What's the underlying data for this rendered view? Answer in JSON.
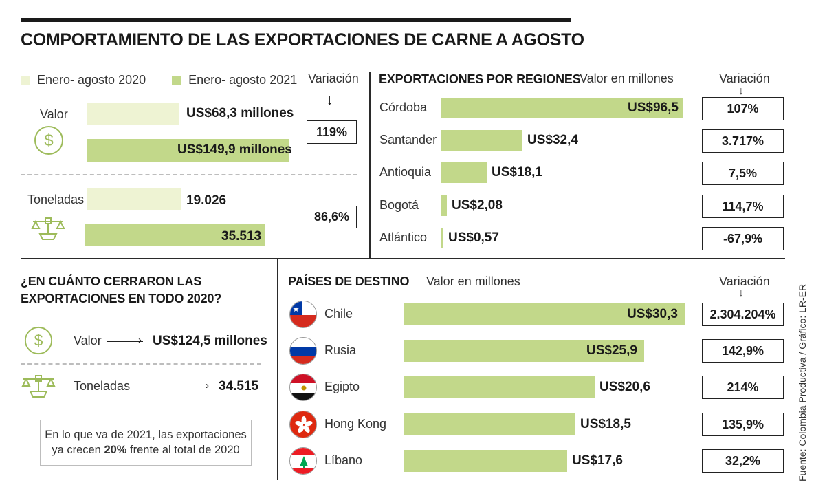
{
  "title": "COMPORTAMIENTO DE LAS EXPORTACIONES DE CARNE A AGOSTO",
  "colors": {
    "light": "#eef3d3",
    "green": "#c2d88a",
    "ink": "#1a1a1a"
  },
  "legend": {
    "item_2020": "Enero- agosto 2020",
    "item_2021": "Enero- agosto 2021"
  },
  "summary": {
    "variacion_label": "Variación",
    "valor": {
      "label": "Valor",
      "icon": "dollar-coin-icon",
      "v2020": 68.3,
      "v2021": 149.9,
      "v2020_text": "US$68,3 millones",
      "v2021_text": "US$149,9 millones",
      "variation": "119%"
    },
    "toneladas": {
      "label": "Toneladas",
      "icon": "scale-icon",
      "v2020": 19026,
      "v2021": 35513,
      "v2020_text": "19.026",
      "v2021_text": "35.513",
      "variation": "86,6%"
    }
  },
  "regions": {
    "title": "EXPORTACIONES POR REGIONES",
    "unit": "Valor en millones",
    "variacion_label": "Variación",
    "max": 96.5,
    "items": [
      {
        "name": "Córdoba",
        "value": 96.5,
        "value_text": "US$96,5",
        "variation": "107%"
      },
      {
        "name": "Santander",
        "value": 32.4,
        "value_text": "US$32,4",
        "variation": "3.717%"
      },
      {
        "name": "Antioquia",
        "value": 18.1,
        "value_text": "US$18,1",
        "variation": "7,5%"
      },
      {
        "name": "Bogotá",
        "value": 2.08,
        "value_text": "US$2,08",
        "variation": "114,7%"
      },
      {
        "name": "Atlántico",
        "value": 0.57,
        "value_text": "US$0,57",
        "variation": "-67,9%"
      }
    ]
  },
  "closing": {
    "title_line1": "¿EN CUÁNTO CERRARON LAS",
    "title_line2": "EXPORTACIONES EN TODO 2020?",
    "valor_label": "Valor",
    "valor_value": "US$124,5 millones",
    "toneladas_label": "Toneladas",
    "toneladas_value": "34.515",
    "note_line1": "En lo que va de 2021, las exportaciones",
    "note_pre": "ya crecen ",
    "note_bold": "20%",
    "note_post": " frente al total de 2020"
  },
  "countries": {
    "title": "PAÍSES DE DESTINO",
    "unit": "Valor en millones",
    "variacion_label": "Variación",
    "max": 30.3,
    "items": [
      {
        "name": "Chile",
        "flag": "chile-flag-icon",
        "value": 30.3,
        "value_text": "US$30,3",
        "variation": "2.304.204%"
      },
      {
        "name": "Rusia",
        "flag": "russia-flag-icon",
        "value": 25.9,
        "value_text": "US$25,9",
        "variation": "142,9%"
      },
      {
        "name": "Egipto",
        "flag": "egypt-flag-icon",
        "value": 20.6,
        "value_text": "US$20,6",
        "variation": "214%"
      },
      {
        "name": "Hong Kong",
        "flag": "hong-kong-flag-icon",
        "value": 18.5,
        "value_text": "US$18,5",
        "variation": "135,9%"
      },
      {
        "name": "Líbano",
        "flag": "lebanon-flag-icon",
        "value": 17.6,
        "value_text": "US$17,6",
        "variation": "32,2%"
      }
    ]
  },
  "source": "Fuente: Colombia Productiva / Gráfico: LR-ER",
  "chart_data": [
    {
      "type": "bar",
      "title": "",
      "categories": [
        "Valor",
        "Toneladas"
      ],
      "series": [
        {
          "name": "Enero- agosto 2020",
          "values": [
            68.3,
            19026
          ]
        },
        {
          "name": "Enero- agosto 2021",
          "values": [
            149.9,
            35513
          ]
        }
      ],
      "variation": [
        "119%",
        "86,6%"
      ]
    },
    {
      "type": "bar",
      "title": "EXPORTACIONES POR REGIONES",
      "ylabel": "Valor en millones",
      "categories": [
        "Córdoba",
        "Santander",
        "Antioquia",
        "Bogotá",
        "Atlántico"
      ],
      "values": [
        96.5,
        32.4,
        18.1,
        2.08,
        0.57
      ],
      "variation": [
        "107%",
        "3.717%",
        "7,5%",
        "114,7%",
        "-67,9%"
      ]
    },
    {
      "type": "bar",
      "title": "PAÍSES DE DESTINO",
      "ylabel": "Valor en millones",
      "categories": [
        "Chile",
        "Rusia",
        "Egipto",
        "Hong Kong",
        "Líbano"
      ],
      "values": [
        30.3,
        25.9,
        20.6,
        18.5,
        17.6
      ],
      "variation": [
        "2.304.204%",
        "142,9%",
        "214%",
        "135,9%",
        "32,2%"
      ]
    }
  ]
}
